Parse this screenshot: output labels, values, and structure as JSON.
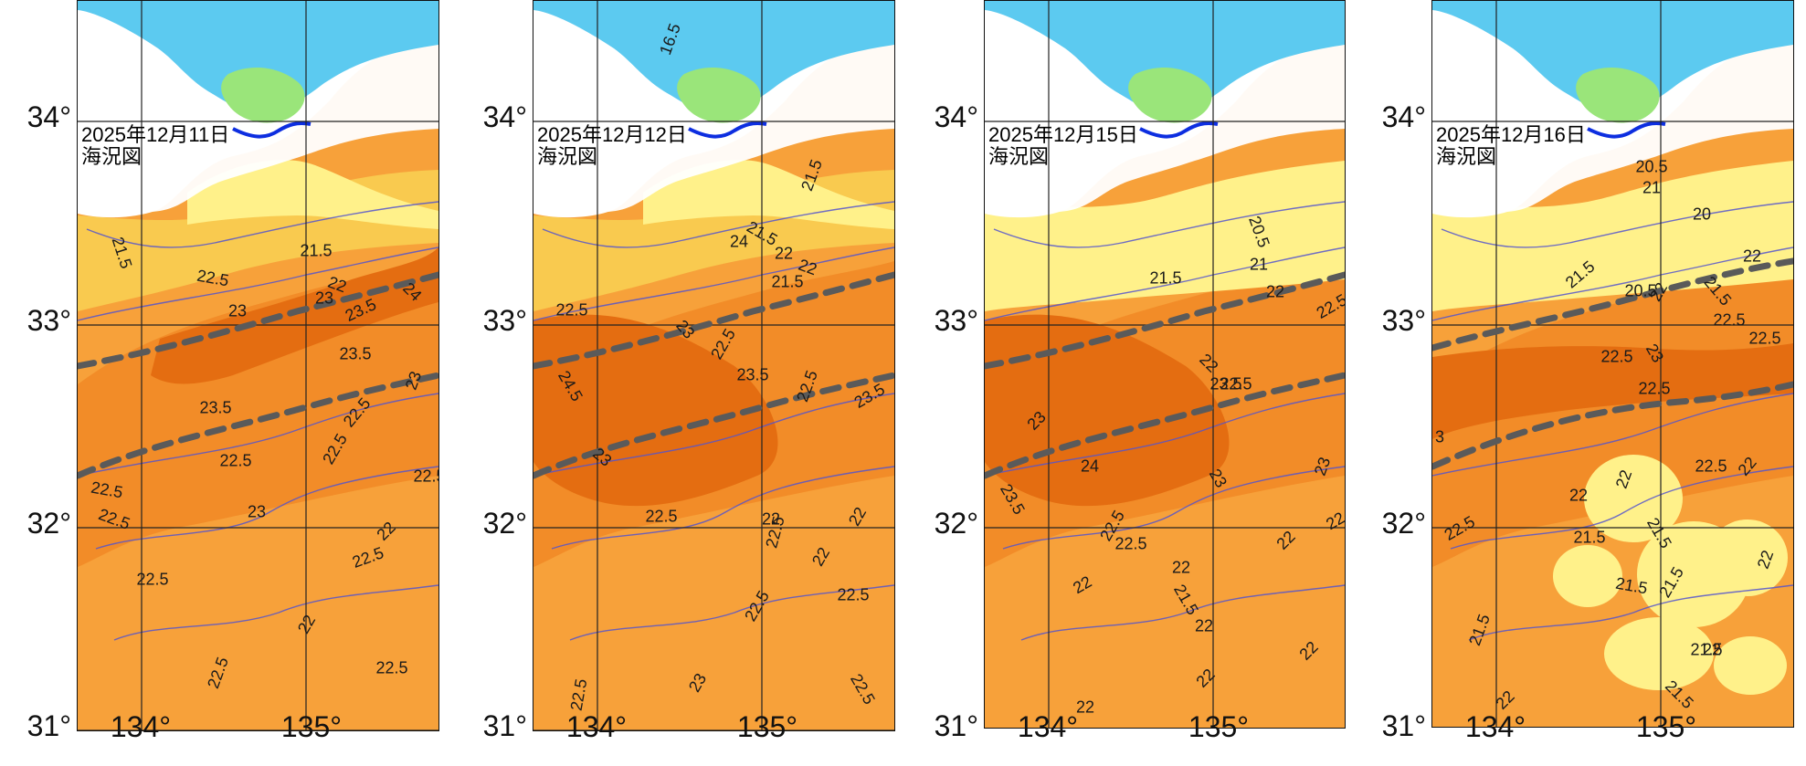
{
  "axes": {
    "lat_labels": [
      "34°",
      "33°",
      "32°",
      "31°"
    ],
    "lon_labels": [
      "134°",
      "135°"
    ]
  },
  "panels": [
    {
      "date": "2025年12月11日",
      "subtitle": "海況図",
      "labels": [
        "21.5",
        "22.5",
        "21.5",
        "22",
        "23",
        "23",
        "23.5",
        "24",
        "23.5",
        "23.5",
        "23",
        "22.5",
        "22.5",
        "22.5",
        "22.5",
        "23",
        "22.5",
        "22",
        "22.5",
        "22.5",
        "22",
        "22.5",
        "22.5",
        "22.5"
      ],
      "colors": {
        "land": "#ffffff",
        "warm": "#f7a13a",
        "warmer": "#f28c28",
        "warmest": "#e46d11",
        "cool": "#f9ca4f",
        "cooler": "#fff18a",
        "bay_blue": "#5ccaf0",
        "bay_green": "#9ae57a"
      }
    },
    {
      "date": "2025年12月12日",
      "subtitle": "海況図",
      "labels": [
        "16.5",
        "21.5",
        "21.5",
        "22",
        "21.5",
        "22",
        "24",
        "22.5",
        "23",
        "24.5",
        "23.5",
        "23.5",
        "22.5",
        "22.5",
        "23",
        "22.5",
        "22",
        "22",
        "22.5",
        "22",
        "22.5",
        "22.5",
        "23",
        "22.5",
        "22.5"
      ],
      "colors": {
        "land": "#ffffff",
        "warm": "#f7a13a",
        "warmer": "#f28c28",
        "warmest": "#e46d11",
        "cool": "#f9ca4f",
        "cooler": "#fff18a",
        "bay_blue": "#5ccaf0",
        "bay_green": "#9ae57a"
      }
    },
    {
      "date": "2025年12月15日",
      "subtitle": "海況図",
      "labels": [
        "21.5",
        "20.5",
        "21",
        "22",
        "22.5",
        "22",
        "22.5",
        "23.5",
        "23",
        "24",
        "23",
        "23",
        "23.5",
        "22.5",
        "22.5",
        "22",
        "22",
        "22",
        "21.5",
        "22",
        "22",
        "22",
        "22",
        "22"
      ],
      "colors": {
        "land": "#ffffff",
        "warm": "#f7a13a",
        "warmer": "#f28c28",
        "warmest": "#e46d11",
        "cool": "#f9ca4f",
        "cooler": "#fff18a",
        "bay_blue": "#5ccaf0",
        "bay_green": "#9ae57a"
      }
    },
    {
      "date": "2025年12月16日",
      "subtitle": "海況図",
      "labels": [
        "20.5",
        "21",
        "20",
        "22",
        "21.5",
        "20.5",
        "22",
        "21.5",
        "22.5",
        "22.5",
        "22.5",
        "23",
        "3",
        "22.5",
        "22",
        "22",
        "22.5",
        "22",
        "22.5",
        "21.5",
        "21.5",
        "21.5",
        "21.5",
        "22",
        "21.5",
        "22",
        "21.5",
        "21.5",
        "22"
      ],
      "colors": {
        "land": "#ffffff",
        "warm": "#f7a13a",
        "warmer": "#f28c28",
        "warmest": "#e46d11",
        "cool": "#f9ca4f",
        "cooler": "#fff18a",
        "bay_blue": "#5ccaf0",
        "bay_green": "#9ae57a"
      }
    }
  ]
}
